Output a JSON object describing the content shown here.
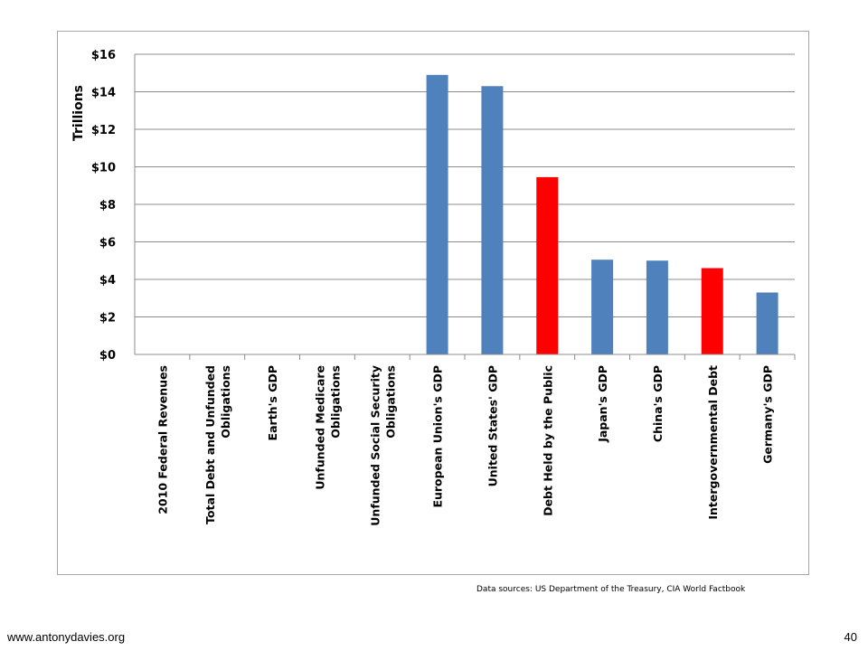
{
  "chart_data": {
    "type": "bar",
    "ylabel": "Trillions",
    "ylim": [
      0,
      16
    ],
    "yticks": [
      "$0",
      "$2",
      "$4",
      "$6",
      "$8",
      "$10",
      "$12",
      "$14",
      "$16"
    ],
    "grid": true,
    "categories": [
      [
        "2010 Federal Revenues"
      ],
      [
        "Total Debt and Unfunded",
        "Obligations"
      ],
      [
        "Earth's GDP"
      ],
      [
        "Unfunded Medicare",
        "Obligations"
      ],
      [
        "Unfunded Social Security",
        "Obligations"
      ],
      [
        "European Union's GDP"
      ],
      [
        "United States' GDP"
      ],
      [
        "Debt Held by the Public"
      ],
      [
        "Japan's GDP"
      ],
      [
        "China's GDP"
      ],
      [
        "Intergovernmental Debt"
      ],
      [
        "Germany's GDP"
      ]
    ],
    "values": [
      null,
      null,
      null,
      null,
      null,
      14.9,
      14.3,
      9.45,
      5.05,
      5.0,
      4.6,
      3.3
    ],
    "colors": [
      "#4f81bd",
      "#4f81bd",
      "#4f81bd",
      "#4f81bd",
      "#4f81bd",
      "#4f81bd",
      "#4f81bd",
      "#ff0000",
      "#4f81bd",
      "#4f81bd",
      "#ff0000",
      "#4f81bd"
    ]
  },
  "source_note": "Data sources: US Department of the Treasury, CIA World Factbook",
  "footer": {
    "url": "www.antonydavies.org",
    "page_number": "40"
  }
}
